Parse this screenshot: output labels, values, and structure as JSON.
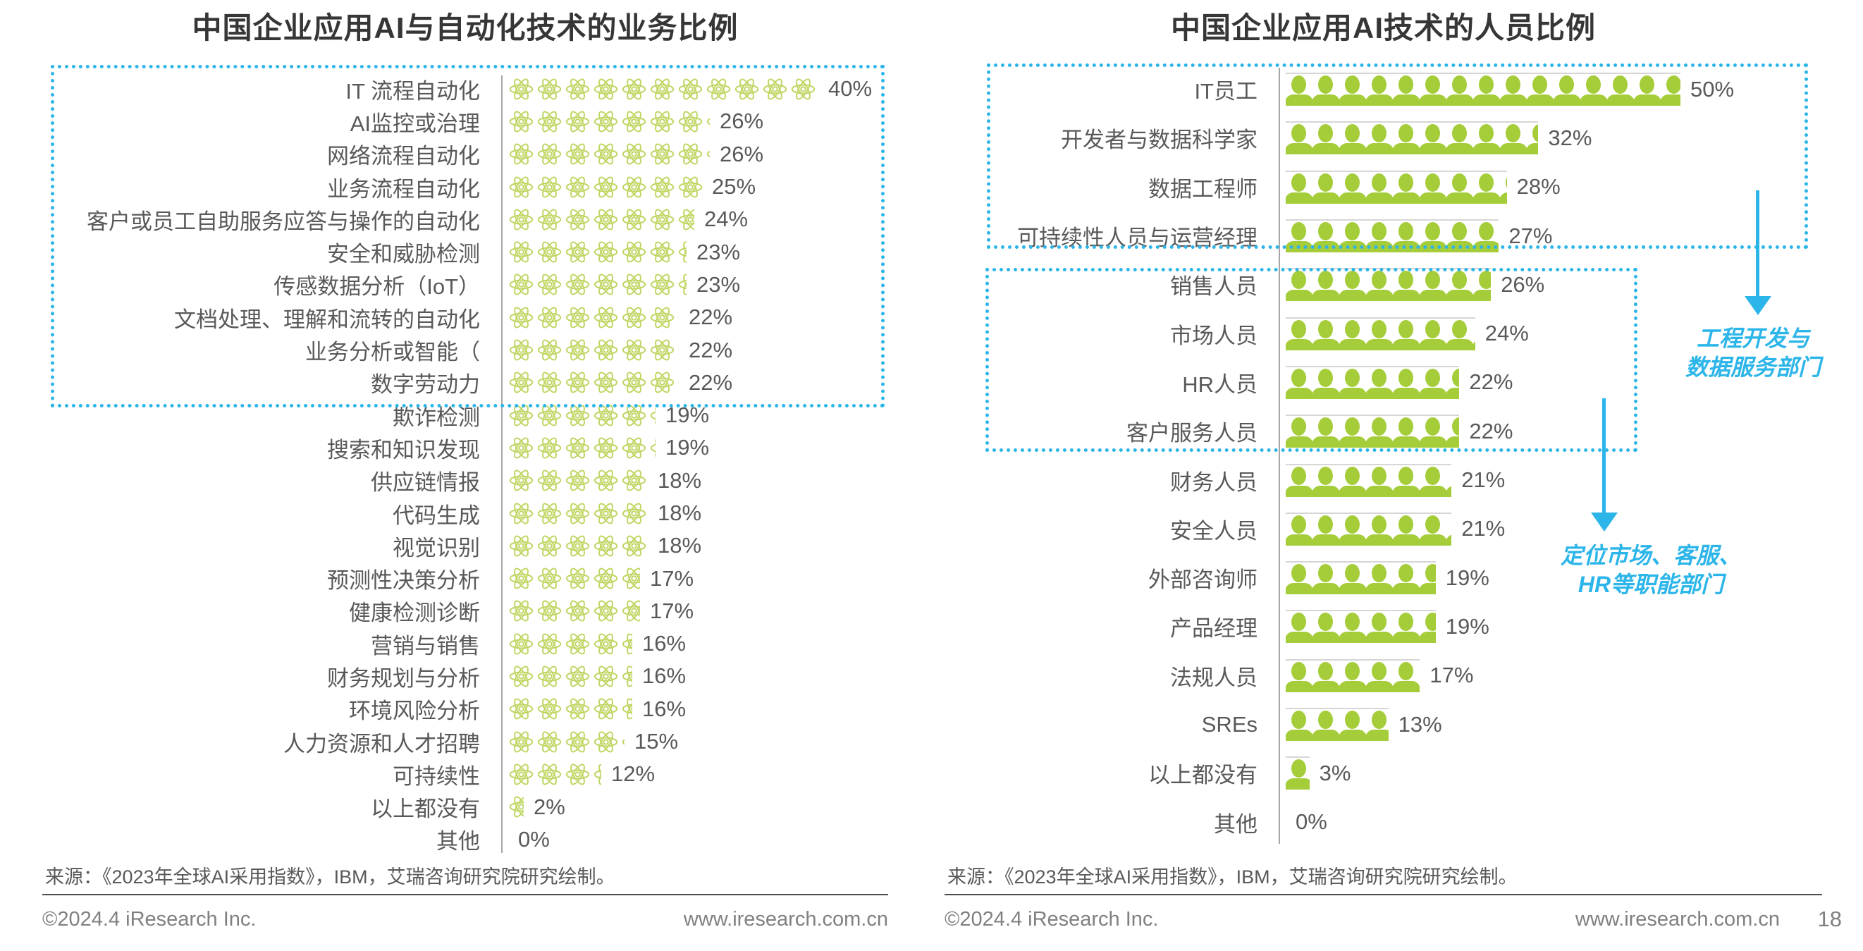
{
  "page": {
    "number": "18"
  },
  "colors": {
    "cyan": "#2cb5e9",
    "green_solid": "#a5cd39",
    "green_outline": "#bfd765",
    "axis_gray": "#a6a6a6",
    "title_text": "#363636",
    "label_text": "#595959",
    "footer_text": "#808080"
  },
  "source_note": "来源：《2023年全球AI采用指数》，IBM，艾瑞咨询研究院研究绘制。",
  "footer": {
    "copyright": "©2024.4 iResearch Inc.",
    "url": "www.iresearch.com.cn"
  },
  "chart_data": [
    {
      "id": "business-use-of-ai-automation",
      "type": "bar",
      "orientation": "horizontal",
      "pictogram": "atom-icon",
      "title": "中国企业应用AI与自动化技术的业务比例",
      "unit": "%",
      "xlim": [
        0,
        45
      ],
      "grid": false,
      "legend": "none",
      "highlight_box_rows": [
        1,
        10
      ],
      "categories": [
        "IT 流程自动化",
        "AI监控或治理",
        "网络流程自动化",
        "业务流程自动化",
        "客户或员工自助服务应答与操作的自动化",
        "安全和威胁检测",
        "传感数据分析（IoT）",
        "文档处理、理解和流转的自动化",
        "业务分析或智能（",
        "数字劳动力",
        "欺诈检测",
        "搜索和知识发现",
        "供应链情报",
        "代码生成",
        "视觉识别",
        "预测性决策分析",
        "健康检测诊断",
        "营销与销售",
        "财务规划与分析",
        "环境风险分析",
        "人力资源和人才招聘",
        "可持续性",
        "以上都没有",
        "其他"
      ],
      "values": [
        40,
        26,
        26,
        25,
        24,
        23,
        23,
        22,
        22,
        22,
        19,
        19,
        18,
        18,
        18,
        17,
        17,
        16,
        16,
        16,
        15,
        12,
        2,
        0
      ]
    },
    {
      "id": "personnel-use-of-ai",
      "type": "bar",
      "orientation": "horizontal",
      "pictogram": "person-icon",
      "title": "中国企业应用AI技术的人员比例",
      "unit": "%",
      "xlim": [
        0,
        55
      ],
      "grid": false,
      "legend": "none",
      "highlight_box_rows_group1": [
        1,
        4
      ],
      "highlight_box_rows_group2": [
        5,
        8
      ],
      "categories": [
        "IT员工",
        "开发者与数据科学家",
        "数据工程师",
        "可持续性人员与运营经理",
        "销售人员",
        "市场人员",
        "HR人员",
        "客户服务人员",
        "财务人员",
        "安全人员",
        "外部咨询师",
        "产品经理",
        "法规人员",
        "SREs",
        "以上都没有",
        "其他"
      ],
      "values": [
        50,
        32,
        28,
        27,
        26,
        24,
        22,
        22,
        21,
        21,
        19,
        19,
        17,
        13,
        3,
        0
      ],
      "annotations": [
        {
          "lines": [
            "工程开发与",
            "数据服务部门"
          ]
        },
        {
          "lines": [
            "定位市场、客服、",
            "HR等职能部门"
          ]
        }
      ]
    }
  ]
}
